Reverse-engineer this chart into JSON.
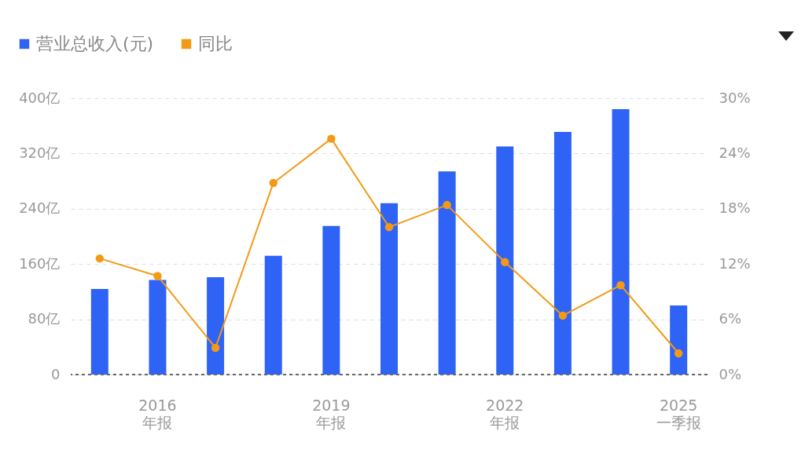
{
  "chart_data": {
    "type": "bar",
    "categories": [
      null,
      "2016\n年报",
      null,
      null,
      "2019\n年报",
      null,
      null,
      "2022\n年报",
      null,
      null,
      "2025\n一季报"
    ],
    "series": [
      {
        "name": "营业总收入(元)",
        "color": "#2f63f6",
        "values": [
          124,
          137,
          141,
          172,
          215,
          248,
          294,
          330,
          351,
          384,
          100
        ]
      },
      {
        "name": "同比",
        "type": "line",
        "axis": "y2",
        "color": "#f29a16",
        "values": [
          12.6,
          10.7,
          2.9,
          20.8,
          25.6,
          16.0,
          18.4,
          12.2,
          6.4,
          9.7,
          2.3
        ]
      }
    ],
    "ylim": [
      0,
      400
    ],
    "yticks": [
      0,
      {
        "value": 80,
        "label": "80亿"
      },
      {
        "value": 160,
        "label": "160亿"
      },
      {
        "value": 240,
        "label": "240亿"
      },
      {
        "value": 320,
        "label": "320亿"
      },
      {
        "value": 400,
        "label": "400亿"
      }
    ],
    "y2lim": [
      0,
      30
    ],
    "y2ticks": [
      {
        "value": 0,
        "label": "0%"
      },
      {
        "value": 6,
        "label": "6%"
      },
      {
        "value": 12,
        "label": "12%"
      },
      {
        "value": 18,
        "label": "18%"
      },
      {
        "value": 24,
        "label": "24%"
      },
      {
        "value": 30,
        "label": "30%"
      }
    ],
    "grid": "y",
    "legend": "top left",
    "marker": "circle",
    "line_style": "solid"
  }
}
